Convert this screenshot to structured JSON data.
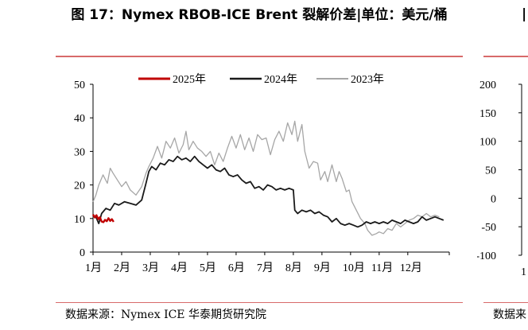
{
  "title": "图 17：Nymex RBOB-ICE Brent 裂解价差|单位：美元/桶",
  "source": "数据来源：Nymex ICE  华泰期货研究院",
  "right_panel": {
    "title_fragment": "|",
    "y_ticks": [
      "200",
      "150",
      "100",
      "50",
      "0",
      "-50",
      "-100"
    ],
    "x_fragment": "1",
    "source_fragment": "数据来"
  },
  "colors": {
    "rule": "#d86a6a",
    "series_2025": "#c00000",
    "series_2024": "#1a1a1a",
    "series_2023": "#a6a6a6"
  },
  "chart_data": {
    "type": "line",
    "title": "",
    "xlabel": "",
    "ylabel": "",
    "ylim": [
      0,
      50
    ],
    "y_ticks": [
      0,
      10,
      20,
      30,
      40,
      50
    ],
    "x_tick_labels": [
      "1月",
      "2月",
      "3月",
      "4月",
      "5月",
      "6月",
      "7月",
      "8月",
      "9月",
      "10月",
      "11月",
      "12月"
    ],
    "x_unit": "month (1.0 = start of January)",
    "legend_position": "top-center",
    "series": [
      {
        "name": "2025年",
        "color": "#c00000",
        "points": [
          [
            1.0,
            11.2
          ],
          [
            1.06,
            10.3
          ],
          [
            1.12,
            11.0
          ],
          [
            1.18,
            9.8
          ],
          [
            1.24,
            10.4
          ],
          [
            1.3,
            9.1
          ],
          [
            1.36,
            8.9
          ],
          [
            1.42,
            9.6
          ],
          [
            1.48,
            9.2
          ],
          [
            1.54,
            10.1
          ],
          [
            1.6,
            9.3
          ],
          [
            1.66,
            9.8
          ],
          [
            1.72,
            9.0
          ]
        ]
      },
      {
        "name": "2024年",
        "color": "#1a1a1a",
        "points": [
          [
            1.0,
            11.0
          ],
          [
            1.1,
            10.5
          ],
          [
            1.2,
            8.5
          ],
          [
            1.3,
            11.5
          ],
          [
            1.45,
            13.0
          ],
          [
            1.6,
            12.5
          ],
          [
            1.75,
            14.5
          ],
          [
            1.9,
            14.0
          ],
          [
            2.1,
            15.0
          ],
          [
            2.3,
            14.5
          ],
          [
            2.5,
            14.0
          ],
          [
            2.7,
            15.5
          ],
          [
            2.85,
            20.5
          ],
          [
            2.95,
            24.0
          ],
          [
            3.05,
            25.5
          ],
          [
            3.2,
            24.5
          ],
          [
            3.35,
            26.5
          ],
          [
            3.5,
            26.0
          ],
          [
            3.65,
            27.5
          ],
          [
            3.8,
            27.0
          ],
          [
            3.95,
            28.5
          ],
          [
            4.1,
            27.5
          ],
          [
            4.25,
            28.0
          ],
          [
            4.4,
            27.0
          ],
          [
            4.55,
            28.5
          ],
          [
            4.7,
            27.0
          ],
          [
            4.85,
            26.0
          ],
          [
            5.0,
            25.0
          ],
          [
            5.15,
            26.0
          ],
          [
            5.3,
            24.5
          ],
          [
            5.45,
            24.0
          ],
          [
            5.6,
            25.0
          ],
          [
            5.75,
            23.0
          ],
          [
            5.9,
            22.5
          ],
          [
            6.05,
            23.0
          ],
          [
            6.2,
            21.5
          ],
          [
            6.35,
            20.5
          ],
          [
            6.5,
            21.0
          ],
          [
            6.65,
            19.0
          ],
          [
            6.8,
            19.5
          ],
          [
            6.95,
            18.5
          ],
          [
            7.1,
            20.0
          ],
          [
            7.25,
            19.5
          ],
          [
            7.4,
            18.5
          ],
          [
            7.55,
            19.0
          ],
          [
            7.7,
            18.5
          ],
          [
            7.85,
            19.0
          ],
          [
            8.0,
            18.5
          ],
          [
            8.05,
            12.5
          ],
          [
            8.15,
            11.5
          ],
          [
            8.3,
            12.5
          ],
          [
            8.45,
            12.0
          ],
          [
            8.6,
            12.5
          ],
          [
            8.75,
            11.5
          ],
          [
            8.9,
            12.0
          ],
          [
            9.05,
            11.0
          ],
          [
            9.2,
            10.5
          ],
          [
            9.35,
            9.0
          ],
          [
            9.5,
            10.0
          ],
          [
            9.65,
            8.5
          ],
          [
            9.8,
            8.0
          ],
          [
            9.95,
            8.5
          ],
          [
            10.1,
            8.0
          ],
          [
            10.25,
            7.5
          ],
          [
            10.4,
            8.0
          ],
          [
            10.55,
            9.0
          ],
          [
            10.7,
            8.5
          ],
          [
            10.85,
            9.0
          ],
          [
            11.0,
            8.5
          ],
          [
            11.15,
            9.0
          ],
          [
            11.3,
            8.5
          ],
          [
            11.45,
            9.5
          ],
          [
            11.6,
            9.0
          ],
          [
            11.75,
            8.5
          ],
          [
            11.9,
            9.5
          ],
          [
            12.05,
            9.0
          ],
          [
            12.2,
            8.5
          ],
          [
            12.35,
            9.0
          ],
          [
            12.5,
            10.5
          ],
          [
            12.65,
            9.5
          ],
          [
            12.8,
            10.0
          ],
          [
            12.95,
            10.5
          ],
          [
            13.1,
            10.0
          ],
          [
            13.25,
            9.5
          ]
        ]
      },
      {
        "name": "2023年",
        "color": "#a6a6a6",
        "points": [
          [
            1.0,
            15.0
          ],
          [
            1.1,
            17.0
          ],
          [
            1.2,
            20.0
          ],
          [
            1.35,
            23.0
          ],
          [
            1.5,
            20.5
          ],
          [
            1.6,
            25.0
          ],
          [
            1.7,
            23.5
          ],
          [
            1.85,
            21.5
          ],
          [
            2.0,
            19.5
          ],
          [
            2.15,
            21.0
          ],
          [
            2.3,
            18.5
          ],
          [
            2.5,
            17.0
          ],
          [
            2.7,
            19.5
          ],
          [
            2.85,
            23.5
          ],
          [
            2.95,
            25.5
          ],
          [
            3.1,
            28.0
          ],
          [
            3.25,
            31.5
          ],
          [
            3.4,
            28.0
          ],
          [
            3.55,
            33.0
          ],
          [
            3.7,
            31.0
          ],
          [
            3.85,
            34.0
          ],
          [
            4.0,
            29.5
          ],
          [
            4.15,
            32.0
          ],
          [
            4.25,
            36.0
          ],
          [
            4.35,
            30.5
          ],
          [
            4.5,
            33.0
          ],
          [
            4.65,
            31.0
          ],
          [
            4.8,
            30.0
          ],
          [
            4.95,
            28.5
          ],
          [
            5.1,
            30.0
          ],
          [
            5.25,
            26.0
          ],
          [
            5.4,
            29.5
          ],
          [
            5.55,
            27.0
          ],
          [
            5.7,
            31.0
          ],
          [
            5.85,
            34.5
          ],
          [
            6.0,
            31.0
          ],
          [
            6.15,
            35.0
          ],
          [
            6.3,
            30.5
          ],
          [
            6.45,
            34.0
          ],
          [
            6.6,
            30.0
          ],
          [
            6.75,
            35.0
          ],
          [
            6.9,
            33.5
          ],
          [
            7.05,
            34.0
          ],
          [
            7.2,
            29.0
          ],
          [
            7.35,
            33.5
          ],
          [
            7.5,
            36.0
          ],
          [
            7.65,
            33.0
          ],
          [
            7.8,
            38.5
          ],
          [
            7.95,
            35.0
          ],
          [
            8.05,
            39.0
          ],
          [
            8.15,
            33.0
          ],
          [
            8.3,
            38.0
          ],
          [
            8.4,
            30.0
          ],
          [
            8.55,
            25.0
          ],
          [
            8.7,
            27.0
          ],
          [
            8.85,
            26.5
          ],
          [
            8.95,
            21.5
          ],
          [
            9.1,
            24.0
          ],
          [
            9.2,
            21.0
          ],
          [
            9.35,
            26.0
          ],
          [
            9.5,
            21.0
          ],
          [
            9.6,
            24.0
          ],
          [
            9.7,
            22.0
          ],
          [
            9.85,
            18.0
          ],
          [
            9.95,
            18.5
          ],
          [
            10.05,
            15.0
          ],
          [
            10.2,
            12.5
          ],
          [
            10.35,
            10.0
          ],
          [
            10.5,
            8.5
          ],
          [
            10.6,
            6.5
          ],
          [
            10.75,
            5.0
          ],
          [
            10.9,
            5.5
          ],
          [
            11.0,
            6.0
          ],
          [
            11.15,
            5.5
          ],
          [
            11.3,
            7.0
          ],
          [
            11.45,
            6.5
          ],
          [
            11.6,
            8.5
          ],
          [
            11.75,
            7.5
          ],
          [
            11.9,
            8.5
          ],
          [
            12.05,
            9.5
          ],
          [
            12.2,
            10.0
          ],
          [
            12.35,
            11.0
          ],
          [
            12.5,
            10.5
          ],
          [
            12.65,
            11.5
          ],
          [
            12.8,
            10.5
          ],
          [
            12.95,
            11.0
          ],
          [
            13.1,
            10.5
          ]
        ]
      }
    ]
  }
}
